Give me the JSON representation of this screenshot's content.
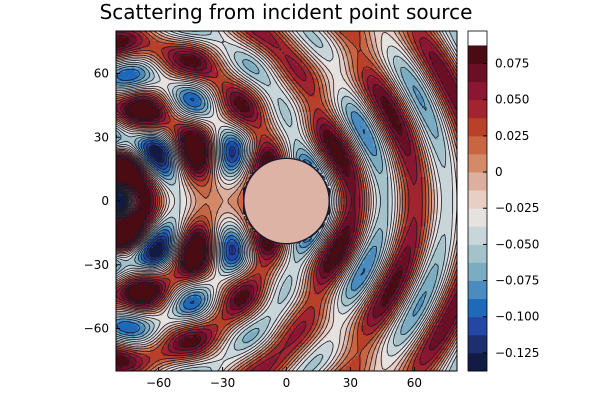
{
  "chart_data": {
    "type": "heatmap",
    "subtype": "filled-contour",
    "title": "Scattering from incident point source",
    "xlabel": "",
    "ylabel": "",
    "xlim": [
      -80,
      80
    ],
    "ylim": [
      -80,
      80
    ],
    "x_ticks": [
      -60,
      -30,
      0,
      30,
      60
    ],
    "x_tick_labels": [
      "−60",
      "−30",
      "0",
      "30",
      "60"
    ],
    "y_ticks": [
      60,
      30,
      0,
      -30,
      -60
    ],
    "y_tick_labels": [
      "60",
      "30",
      "0",
      "−30",
      "−60"
    ],
    "colorbar": {
      "range": [
        -0.1375,
        0.0975
      ],
      "levels": [
        -0.1375,
        -0.125,
        -0.1125,
        -0.1,
        -0.0875,
        -0.075,
        -0.0625,
        -0.05,
        -0.0375,
        -0.025,
        -0.0125,
        0,
        0.0125,
        0.025,
        0.0375,
        0.05,
        0.0625,
        0.075,
        0.0875,
        0.0975
      ],
      "ticks": [
        0.075,
        0.05,
        0.025,
        0,
        -0.025,
        -0.05,
        -0.075,
        -0.1,
        -0.125
      ],
      "tick_labels": [
        "0.075",
        "0.050",
        "0.025",
        "0",
        "−0.025",
        "−0.050",
        "−0.075",
        "−0.100",
        "−0.125"
      ],
      "colormap": "balance (blue-white-red)",
      "colors_low_to_high": [
        "#111b44",
        "#1d2f6e",
        "#2447a6",
        "#1f69bb",
        "#4a8cbf",
        "#7aacc2",
        "#a4c2c9",
        "#c8d6da",
        "#e6e2e0",
        "#e8cfc4",
        "#dcaf9e",
        "#d48967",
        "#c86644",
        "#b94129",
        "#a1242e",
        "#8a1632",
        "#6b0f25",
        "#4a0c12"
      ]
    },
    "scatterer": {
      "shape": "disk",
      "center": [
        0,
        0
      ],
      "radius": 20,
      "fill": "#dcb3a5"
    },
    "source": {
      "position": [
        -80,
        0
      ],
      "description": "point source at left edge"
    },
    "grid": false,
    "legend": "none"
  }
}
